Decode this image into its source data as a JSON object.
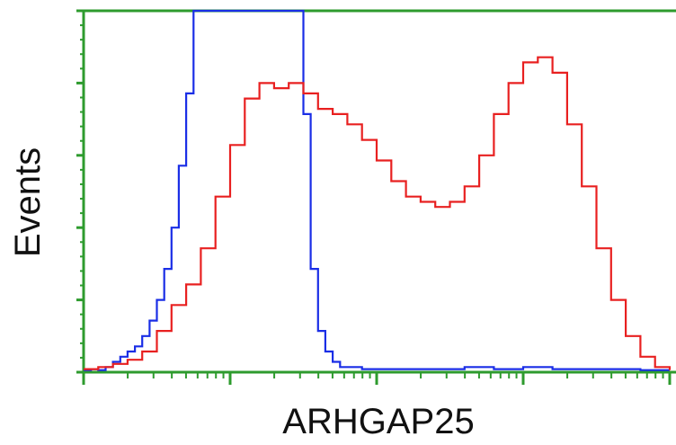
{
  "chart_data": {
    "type": "line",
    "title": "",
    "xlabel": "ARHGAP25",
    "ylabel": "Events",
    "x_scale": "log",
    "x_decades": 4,
    "y_ticks": 5,
    "grid": false,
    "legend": "none",
    "colors": {
      "axis": "#2e9b2e",
      "frame": "#2e9b2e",
      "text": "#111111"
    },
    "series": [
      {
        "color": "#1a2ee6",
        "x": [
          0.0,
          0.05,
          0.1,
          0.15,
          0.2,
          0.25,
          0.3,
          0.35,
          0.4,
          0.45,
          0.5,
          0.55,
          0.6,
          0.65,
          0.7,
          0.75,
          0.8,
          0.85,
          0.9,
          0.95,
          1.0,
          1.05,
          1.1,
          1.15,
          1.2,
          1.25,
          1.3,
          1.35,
          1.4,
          1.45,
          1.5,
          1.55,
          1.6,
          1.65,
          1.7,
          1.75,
          1.8,
          1.9,
          2.0,
          2.2,
          2.4,
          2.6,
          2.8,
          3.0,
          3.2,
          3.4,
          3.6,
          3.8,
          4.0
        ],
        "y": [
          0.2,
          0.3,
          0.2,
          0.5,
          1.0,
          1.5,
          2.0,
          2.5,
          3.5,
          5.0,
          7.0,
          10.0,
          14.0,
          20.0,
          27.0,
          35.0,
          45.0,
          60.0,
          80.0,
          110.0,
          145.0,
          170.0,
          175.0,
          170.0,
          160.0,
          150.0,
          140.0,
          110.0,
          80.0,
          50.0,
          25.0,
          10.0,
          4.0,
          2.0,
          1.0,
          0.5,
          0.5,
          0.3,
          0.3,
          0.3,
          0.3,
          0.5,
          0.3,
          0.5,
          0.3,
          0.3,
          0.3,
          0.2,
          0.2
        ]
      },
      {
        "color": "#e82020",
        "x": [
          0.0,
          0.1,
          0.2,
          0.3,
          0.4,
          0.5,
          0.6,
          0.7,
          0.8,
          0.9,
          1.0,
          1.1,
          1.2,
          1.3,
          1.4,
          1.5,
          1.6,
          1.7,
          1.8,
          1.9,
          2.0,
          2.1,
          2.2,
          2.3,
          2.4,
          2.5,
          2.6,
          2.7,
          2.8,
          2.9,
          3.0,
          3.1,
          3.2,
          3.3,
          3.4,
          3.5,
          3.6,
          3.7,
          3.8,
          3.9,
          4.0
        ],
        "y": [
          0.3,
          0.5,
          0.8,
          1.2,
          2.0,
          4.0,
          6.5,
          8.5,
          12.0,
          17.0,
          22.0,
          26.5,
          28.0,
          27.5,
          28.0,
          27.0,
          25.5,
          25.0,
          24.0,
          22.5,
          20.5,
          18.5,
          17.0,
          16.5,
          16.0,
          16.5,
          18.0,
          21.0,
          25.0,
          28.0,
          30.0,
          30.5,
          29.0,
          24.0,
          18.0,
          12.0,
          7.0,
          3.5,
          1.5,
          0.5,
          0.2
        ]
      }
    ]
  }
}
